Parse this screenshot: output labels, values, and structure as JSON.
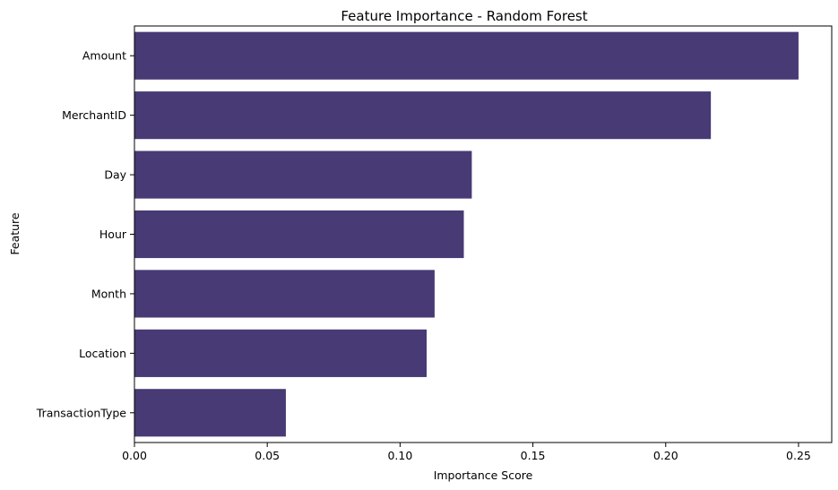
{
  "chart_data": {
    "type": "bar",
    "orientation": "horizontal",
    "title": "Feature Importance - Random Forest",
    "xlabel": "Importance Score",
    "ylabel": "Feature",
    "categories": [
      "Amount",
      "MerchantID",
      "Day",
      "Hour",
      "Month",
      "Location",
      "TransactionType"
    ],
    "values": [
      0.25,
      0.217,
      0.127,
      0.124,
      0.113,
      0.11,
      0.057
    ],
    "xlim": [
      0,
      0.2625
    ],
    "xticks": [
      0.0,
      0.05,
      0.1,
      0.15,
      0.2,
      0.25
    ],
    "xtick_labels": [
      "0.00",
      "0.05",
      "0.10",
      "0.15",
      "0.20",
      "0.25"
    ],
    "bar_color": "#483a75",
    "grid": false,
    "legend": "none"
  }
}
